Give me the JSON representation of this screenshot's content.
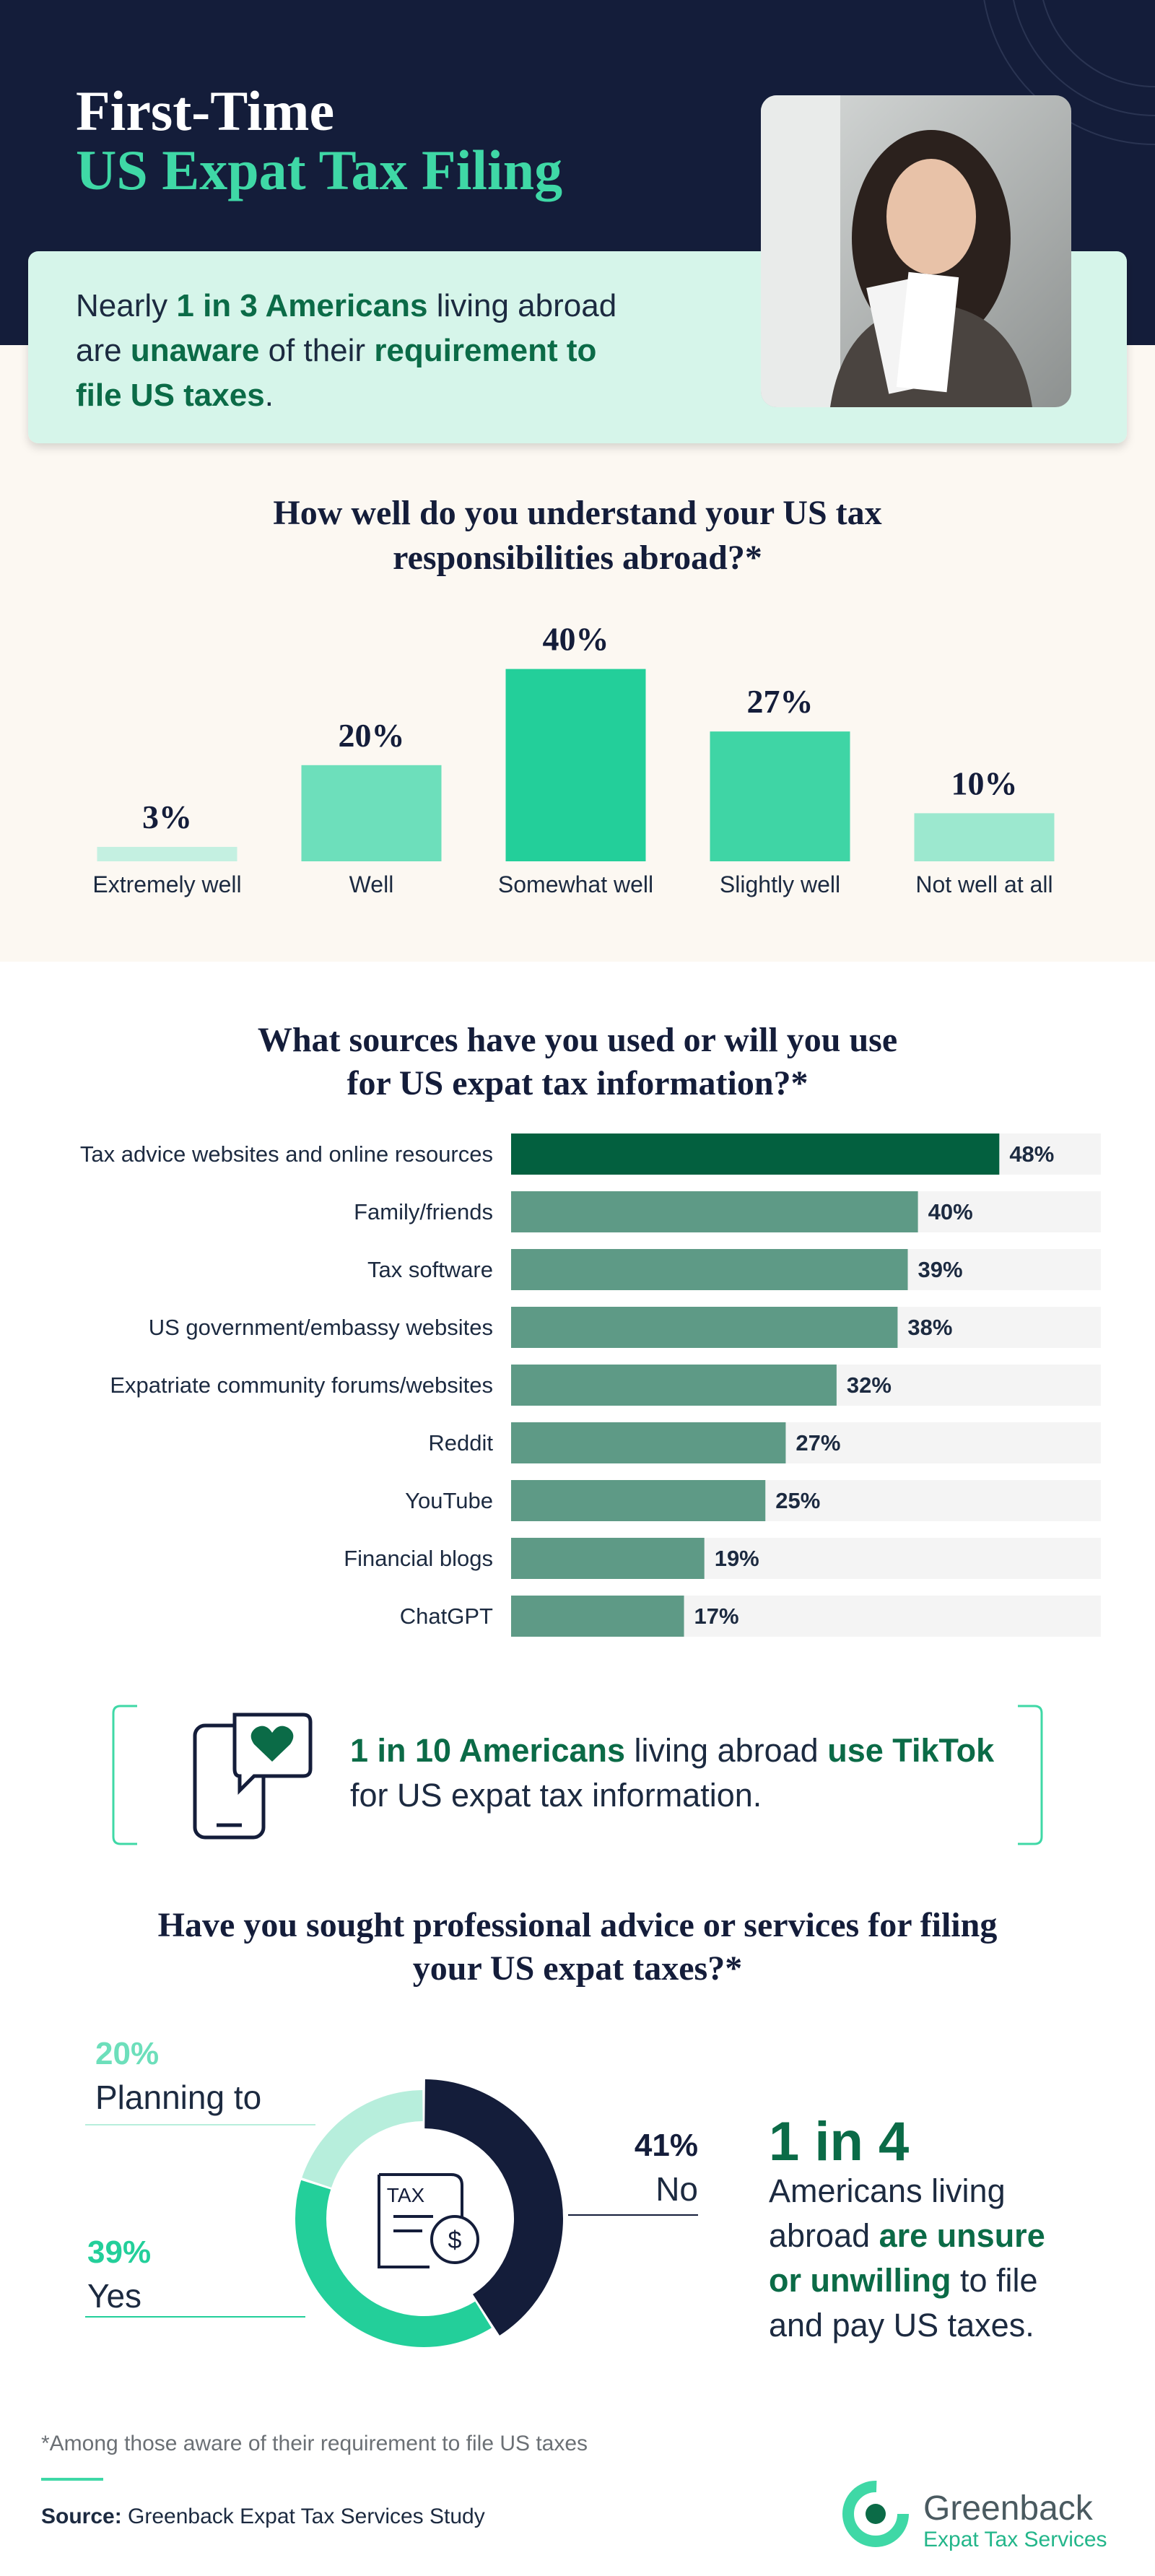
{
  "header": {
    "title_lines": [
      "First-Time",
      "US Expat Tax Filing"
    ],
    "title_colors": [
      "#ffffff",
      "#3fd8a6"
    ]
  },
  "callout": {
    "lines": [
      [
        {
          "text": "Nearly ",
          "bold": false
        },
        {
          "text": "1 in 3 Americans",
          "bold": true
        },
        {
          "text": " living abroad",
          "bold": false
        }
      ],
      [
        {
          "text": "are ",
          "bold": false
        },
        {
          "text": "unaware",
          "bold": true
        },
        {
          "text": " of their ",
          "bold": false
        },
        {
          "text": "requirement to",
          "bold": true
        }
      ],
      [
        {
          "text": "file US taxes",
          "bold": true
        },
        {
          "text": ".",
          "bold": false
        }
      ]
    ]
  },
  "chart_data": [
    {
      "type": "bar",
      "title": [
        "How well do you understand your US tax",
        "responsibilities abroad?*"
      ],
      "categories": [
        "Extremely well",
        "Well",
        "Somewhat well",
        "Slightly well",
        "Not well at all"
      ],
      "values": [
        3,
        20,
        40,
        27,
        10
      ],
      "value_labels": [
        "3%",
        "20%",
        "40%",
        "27%",
        "10%"
      ],
      "colors": [
        "#c4f0e1",
        "#6ddfbb",
        "#23cf9a",
        "#3fd5a5",
        "#9ce8cf"
      ]
    },
    {
      "type": "hbar",
      "title": [
        "What sources have you used or will you use",
        "for US expat tax information?*"
      ],
      "categories": [
        "Tax advice websites and online resources",
        "Family/friends",
        "Tax software",
        "US government/embassy websites",
        "Expatriate community forums/websites",
        "Reddit",
        "YouTube",
        "Financial blogs",
        "ChatGPT"
      ],
      "values": [
        48,
        40,
        39,
        38,
        32,
        27,
        25,
        19,
        17
      ],
      "value_labels": [
        "48%",
        "40%",
        "39%",
        "38%",
        "32%",
        "27%",
        "25%",
        "19%",
        "17%"
      ],
      "colors": [
        "#03603f",
        "#5e9a86",
        "#5e9a86",
        "#5e9a86",
        "#5e9a86",
        "#5e9a86",
        "#5e9a86",
        "#5e9a86",
        "#5e9a86"
      ]
    },
    {
      "type": "donut",
      "title": [
        "Have you sought professional advice or services for filing",
        "your US expat taxes?*"
      ],
      "categories": [
        "No",
        "Yes",
        "Planning to"
      ],
      "values": [
        41,
        39,
        20
      ],
      "value_labels": [
        "41%",
        "39%",
        "20%"
      ],
      "colors": [
        "#141d3a",
        "#23cf9a",
        "#b7eedc"
      ],
      "label_colors": [
        "#141d3a",
        "#23cf9a",
        "#6ddfbb"
      ],
      "center_icon": {
        "label": "TAX",
        "symbol": "$"
      }
    }
  ],
  "tiktok_callout": {
    "lines": [
      [
        {
          "text": "1 in 10 Americans",
          "bold": true
        },
        {
          "text": " living abroad ",
          "bold": false
        },
        {
          "text": "use TikTok",
          "bold": true
        }
      ],
      [
        {
          "text": "for US expat tax information.",
          "bold": false
        }
      ]
    ]
  },
  "stat": {
    "big": "1 in 4",
    "lines": [
      [
        {
          "text": "Americans living",
          "bold": false
        }
      ],
      [
        {
          "text": "abroad ",
          "bold": false
        },
        {
          "text": "are unsure",
          "bold": true
        }
      ],
      [
        {
          "text": "or unwilling",
          "bold": true
        },
        {
          "text": " to file",
          "bold": false
        }
      ],
      [
        {
          "text": "and pay US taxes.",
          "bold": false
        }
      ]
    ]
  },
  "footnote": "*Among those aware of their requirement to file US taxes",
  "source": {
    "label": "Source:",
    "text": " Greenback Expat Tax Services Study"
  },
  "logo": {
    "name": "Greenback",
    "tagline": "Expat Tax Services"
  }
}
